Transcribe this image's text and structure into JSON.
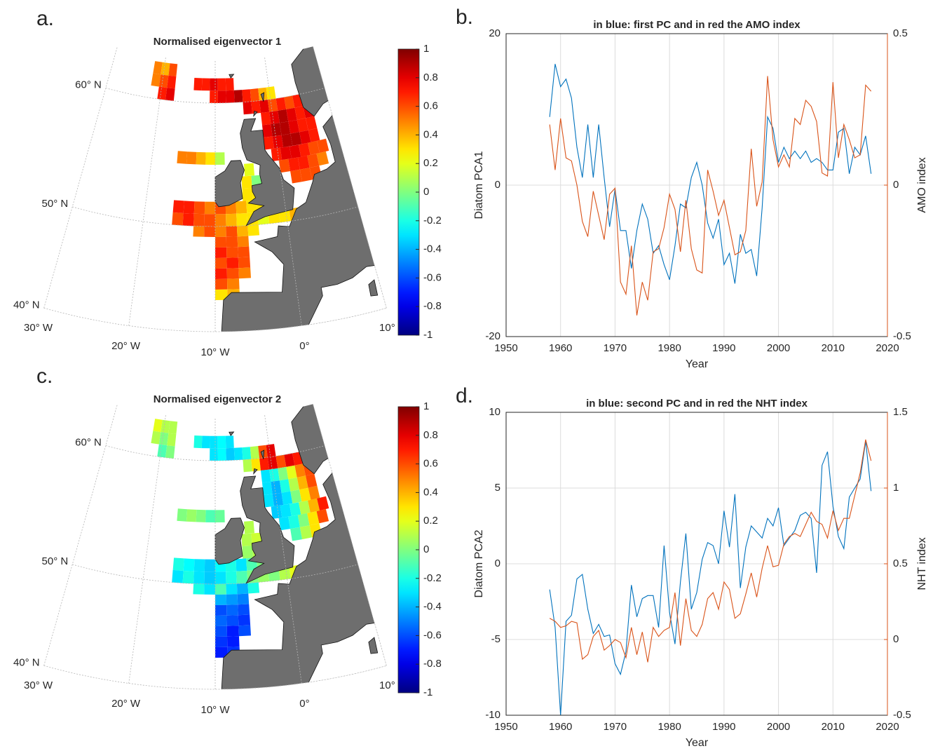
{
  "chart_data": [
    {
      "type": "map",
      "label": "a.",
      "title": "Normalised eigenvector 1",
      "clim": [
        -1,
        1
      ],
      "cticks": [
        -1,
        -0.8,
        -0.6,
        -0.4,
        -0.2,
        0,
        0.2,
        0.4,
        0.6,
        0.8,
        1
      ],
      "lat_lines": [
        {
          "value": 40,
          "label": "40° N"
        },
        {
          "value": 50,
          "label": "50° N"
        },
        {
          "value": 60,
          "label": "60° N"
        }
      ],
      "lon_lines": [
        {
          "value": -30,
          "label": "30° W"
        },
        {
          "value": -20,
          "label": "20° W"
        },
        {
          "value": -10,
          "label": "10° W"
        },
        {
          "value": 0,
          "label": "0°"
        },
        {
          "value": 10,
          "label": "10° E"
        }
      ],
      "cells": [
        {
          "lat": 62,
          "lon": -22,
          "values": [
            0.5,
            0.4,
            0.6
          ]
        },
        {
          "lat": 61,
          "lon": -22,
          "values": [
            0.5,
            0.6,
            0.7
          ]
        },
        {
          "lat": 60,
          "lon": -20.5,
          "values": [
            0.7,
            0.8
          ]
        },
        {
          "lat": 61,
          "lon": -14,
          "values": [
            0.7,
            0.7,
            0.8,
            0.7,
            0.7
          ]
        },
        {
          "lat": 60,
          "lon": -11,
          "values": [
            0.7,
            0.8,
            0.8,
            0.9,
            0.7,
            0.6,
            0.4,
            0.3
          ]
        },
        {
          "lat": 59,
          "lon": -5,
          "values": [
            0.8,
            0.7,
            0.8,
            0.6,
            0.7,
            0.6,
            0.7
          ]
        },
        {
          "lat": 58,
          "lon": -2,
          "values": [
            0.7,
            0.8,
            0.9,
            0.8,
            0.7,
            0.8
          ]
        },
        {
          "lat": 57,
          "lon": -2,
          "values": [
            0.8,
            0.9,
            0.9,
            0.8,
            0.7,
            0.7
          ]
        },
        {
          "lat": 56,
          "lon": -2,
          "values": [
            0.7,
            0.8,
            0.9,
            0.9,
            0.8,
            0.7
          ]
        },
        {
          "lat": 55,
          "lon": -1,
          "values": [
            0.7,
            0.8,
            0.8,
            0.7,
            0.6,
            0.6
          ]
        },
        {
          "lat": 54,
          "lon": 0,
          "values": [
            0.6,
            0.7,
            0.7,
            0.6,
            0.5
          ]
        },
        {
          "lat": 53,
          "lon": 1.5,
          "values": [
            0.6,
            0.6,
            0.6
          ]
        },
        {
          "lat": 55,
          "lon": -16,
          "values": [
            0.5,
            0.5,
            0.4,
            0.3,
            0.1
          ]
        },
        {
          "lat": 54,
          "lon": -5.5,
          "values": [
            0.2
          ]
        },
        {
          "lat": 53,
          "lon": -6,
          "values": [
            0.3,
            0
          ]
        },
        {
          "lat": 52,
          "lon": -6,
          "values": [
            0.3,
            0.3
          ]
        },
        {
          "lat": 51,
          "lon": -16,
          "values": [
            0.7,
            0.7,
            0.6,
            0.5,
            0.6,
            0.5,
            0.4,
            0.3,
            0.3,
            0.3
          ]
        },
        {
          "lat": 50,
          "lon": -16,
          "values": [
            0.6,
            0.7,
            0.6,
            0.6,
            0.5,
            0.4,
            0.3,
            0.3,
            0.2,
            0.3,
            0.3,
            0.4
          ]
        },
        {
          "lat": 49,
          "lon": -13,
          "values": [
            0.5,
            0.6,
            0.5,
            0.6,
            0.4,
            0.3
          ]
        },
        {
          "lat": 48,
          "lon": -10,
          "values": [
            0.6,
            0.6,
            0.5
          ]
        },
        {
          "lat": 47,
          "lon": -10,
          "values": [
            0.7,
            0.6,
            0.6
          ]
        },
        {
          "lat": 46,
          "lon": -10,
          "values": [
            0.6,
            0.7,
            0.6
          ]
        },
        {
          "lat": 45,
          "lon": -10,
          "values": [
            0.7,
            0.6,
            0.5
          ]
        },
        {
          "lat": 44,
          "lon": -10,
          "values": [
            0.6,
            0.5
          ]
        },
        {
          "lat": 43,
          "lon": -10,
          "values": [
            0.3,
            0.4
          ]
        }
      ]
    },
    {
      "type": "map",
      "label": "c.",
      "title": "Normalised eigenvector 2",
      "clim": [
        -1,
        1
      ],
      "cticks": [
        -1,
        -0.8,
        -0.6,
        -0.4,
        -0.2,
        0,
        0.2,
        0.4,
        0.6,
        0.8,
        1
      ],
      "lat_lines": [
        {
          "value": 40,
          "label": "40° N"
        },
        {
          "value": 50,
          "label": "50° N"
        },
        {
          "value": 60,
          "label": "60° N"
        }
      ],
      "lon_lines": [
        {
          "value": -30,
          "label": "30° W"
        },
        {
          "value": -20,
          "label": "20° W"
        },
        {
          "value": -10,
          "label": "10° W"
        },
        {
          "value": 0,
          "label": "0°"
        },
        {
          "value": 10,
          "label": "10° E"
        }
      ],
      "cells": [
        {
          "lat": 62,
          "lon": -22,
          "values": [
            0.2,
            0.1,
            0.1
          ]
        },
        {
          "lat": 61,
          "lon": -22,
          "values": [
            0.1,
            0,
            0.1
          ]
        },
        {
          "lat": 60,
          "lon": -20.5,
          "values": [
            -0.1,
            0
          ]
        },
        {
          "lat": 61,
          "lon": -14,
          "values": [
            -0.2,
            -0.3,
            -0.3,
            -0.25,
            -0.3
          ]
        },
        {
          "lat": 60,
          "lon": -11,
          "values": [
            -0.3,
            -0.25,
            -0.35,
            -0.3,
            -0.2,
            0.1,
            0.6,
            0.8
          ]
        },
        {
          "lat": 59,
          "lon": -5,
          "values": [
            0.1,
            0.3,
            0.7,
            0.8,
            0.6,
            0.8,
            0.7
          ]
        },
        {
          "lat": 58,
          "lon": -2,
          "values": [
            -0.3,
            -0.2,
            0,
            0.2,
            0.5,
            0.6
          ]
        },
        {
          "lat": 57,
          "lon": -2,
          "values": [
            -0.3,
            -0.4,
            -0.2,
            0.1,
            0.4,
            0.6
          ]
        },
        {
          "lat": 56,
          "lon": -2,
          "values": [
            -0.3,
            -0.4,
            -0.3,
            0,
            0.3,
            0.5
          ]
        },
        {
          "lat": 55,
          "lon": -1,
          "values": [
            -0.35,
            -0.3,
            -0.2,
            0.1,
            0.4,
            0.7
          ]
        },
        {
          "lat": 54,
          "lon": 0,
          "values": [
            -0.3,
            -0.2,
            0,
            0.3,
            0.6
          ]
        },
        {
          "lat": 53,
          "lon": 1.5,
          "values": [
            -0.1,
            0.1,
            0.3
          ]
        },
        {
          "lat": 55,
          "lon": -16,
          "values": [
            0,
            0.05,
            0,
            -0.1,
            -0.05
          ]
        },
        {
          "lat": 54,
          "lon": -5.5,
          "values": [
            0.1
          ]
        },
        {
          "lat": 53,
          "lon": -6,
          "values": [
            0.1,
            0.15
          ]
        },
        {
          "lat": 52,
          "lon": -6,
          "values": [
            0.05,
            0.1
          ]
        },
        {
          "lat": 51,
          "lon": -16,
          "values": [
            -0.2,
            -0.25,
            -0.3,
            -0.35,
            -0.25,
            -0.2,
            -0.3,
            -0.1,
            0,
            0
          ]
        },
        {
          "lat": 50,
          "lon": -16,
          "values": [
            -0.3,
            -0.2,
            -0.3,
            -0.35,
            -0.3,
            -0.2,
            -0.1,
            0,
            0.05,
            0,
            0.1,
            0.2
          ]
        },
        {
          "lat": 49,
          "lon": -13,
          "values": [
            -0.2,
            -0.3,
            -0.1,
            -0.3,
            -0.4,
            -0.2
          ]
        },
        {
          "lat": 48,
          "lon": -10,
          "values": [
            -0.4,
            -0.45,
            -0.5
          ]
        },
        {
          "lat": 47,
          "lon": -10,
          "values": [
            -0.6,
            -0.55,
            -0.6
          ]
        },
        {
          "lat": 46,
          "lon": -10,
          "values": [
            -0.55,
            -0.6,
            -0.65
          ]
        },
        {
          "lat": 45,
          "lon": -10,
          "values": [
            -0.6,
            -0.7,
            -0.6
          ]
        },
        {
          "lat": 44,
          "lon": -10,
          "values": [
            -0.65,
            -0.7
          ]
        },
        {
          "lat": 43,
          "lon": -10,
          "values": [
            -0.7,
            -0.65
          ]
        }
      ]
    },
    {
      "type": "line",
      "label": "b.",
      "title": "in blue: first PC and in red the AMO index",
      "xlabel": "Year",
      "ylabel": "Diatom PCA1",
      "y2label": "AMO index",
      "x": [
        1958,
        1959,
        1960,
        1961,
        1962,
        1963,
        1964,
        1965,
        1966,
        1967,
        1968,
        1969,
        1970,
        1971,
        1972,
        1973,
        1974,
        1975,
        1976,
        1977,
        1978,
        1979,
        1980,
        1981,
        1982,
        1983,
        1984,
        1985,
        1986,
        1987,
        1988,
        1989,
        1990,
        1991,
        1992,
        1993,
        1994,
        1995,
        1996,
        1997,
        1998,
        1999,
        2000,
        2001,
        2002,
        2003,
        2004,
        2005,
        2006,
        2007,
        2008,
        2009,
        2010,
        2011,
        2012,
        2013,
        2014,
        2015,
        2016,
        2017
      ],
      "series": [
        {
          "color": "#0072bd",
          "values": [
            9,
            16,
            13,
            14,
            11.5,
            5,
            1,
            8,
            1,
            8,
            1,
            -5.5,
            -0.5,
            -6,
            -6,
            -11,
            -6,
            -2.5,
            -4.5,
            -9,
            -8,
            -10.5,
            -12.5,
            -8,
            -2.5,
            -3,
            1,
            3,
            0,
            -5,
            -7,
            -4.5,
            -10.5,
            -9,
            -13,
            -6.5,
            -9,
            -8.5,
            -12,
            -3,
            9,
            7.5,
            3,
            5,
            3.5,
            4.5,
            3.5,
            4.5,
            3,
            3.5,
            3,
            2,
            2,
            7,
            7.5,
            1.5,
            5,
            4,
            6.5,
            1.5
          ]
        },
        {
          "color": "#d95319",
          "axis": "y2",
          "values": [
            0.2,
            0.05,
            0.22,
            0.09,
            0.08,
            0,
            -0.12,
            -0.17,
            -0.02,
            -0.1,
            -0.18,
            -0.03,
            -0.01,
            -0.32,
            -0.36,
            -0.2,
            -0.43,
            -0.32,
            -0.38,
            -0.22,
            -0.21,
            -0.14,
            -0.03,
            -0.08,
            -0.22,
            -0.05,
            -0.21,
            -0.28,
            -0.29,
            0.05,
            -0.02,
            -0.1,
            -0.05,
            -0.14,
            -0.23,
            -0.22,
            -0.15,
            0.12,
            -0.07,
            0.01,
            0.36,
            0.15,
            0.06,
            0.1,
            0.06,
            0.22,
            0.2,
            0.28,
            0.26,
            0.21,
            0.04,
            0.03,
            0.34,
            0.09,
            0.2,
            0.15,
            0.09,
            0.1,
            0.33,
            0.31
          ]
        }
      ],
      "xlim": [
        1950,
        2020
      ],
      "xticks": [
        1950,
        1960,
        1970,
        1980,
        1990,
        2000,
        2010,
        2020
      ],
      "ylim": [
        -20,
        20
      ],
      "yticks": [
        -20,
        0,
        20
      ],
      "y2lim": [
        -0.5,
        0.5
      ],
      "y2ticks": [
        -0.5,
        0,
        0.5
      ],
      "grid": true
    },
    {
      "type": "line",
      "label": "d.",
      "title": "in blue: second PC and in red the NHT index",
      "xlabel": "Year",
      "ylabel": "Diatom PCA2",
      "y2label": "NHT index",
      "x": [
        1958,
        1959,
        1960,
        1961,
        1962,
        1963,
        1964,
        1965,
        1966,
        1967,
        1968,
        1969,
        1970,
        1971,
        1972,
        1973,
        1974,
        1975,
        1976,
        1977,
        1978,
        1979,
        1980,
        1981,
        1982,
        1983,
        1984,
        1985,
        1986,
        1987,
        1988,
        1989,
        1990,
        1991,
        1992,
        1993,
        1994,
        1995,
        1996,
        1997,
        1998,
        1999,
        2000,
        2001,
        2002,
        2003,
        2004,
        2005,
        2006,
        2007,
        2008,
        2009,
        2010,
        2011,
        2012,
        2013,
        2014,
        2015,
        2016,
        2017
      ],
      "series": [
        {
          "color": "#0072bd",
          "values": [
            -1.7,
            -4.2,
            -10,
            -3.8,
            -3.4,
            -1,
            -0.7,
            -3,
            -4.6,
            -4,
            -4.8,
            -4.7,
            -6.6,
            -7.3,
            -5.8,
            -1.4,
            -3.5,
            -2.3,
            -2.1,
            -2.1,
            -4.2,
            1.2,
            -3.2,
            -5.3,
            -1.2,
            2,
            -3,
            -1.9,
            0.3,
            1.4,
            1.2,
            0,
            3.5,
            1.1,
            4.6,
            -1.6,
            1.1,
            2.5,
            2.1,
            1.7,
            3,
            2.5,
            3.7,
            1.2,
            1.7,
            2.2,
            3.2,
            3.4,
            3,
            -0.6,
            6.5,
            7.4,
            3.8,
            1.8,
            1,
            4.4,
            5,
            5.6,
            8.1,
            4.8
          ]
        },
        {
          "color": "#d95319",
          "axis": "y2",
          "values": [
            0.14,
            0.12,
            0.08,
            0.09,
            0.12,
            0.11,
            -0.13,
            -0.1,
            0.02,
            0.06,
            -0.07,
            -0.04,
            0,
            -0.02,
            -0.12,
            0.08,
            -0.1,
            0.05,
            -0.15,
            0.08,
            0.02,
            0.06,
            0.08,
            0.31,
            -0.04,
            0.27,
            0.06,
            0.02,
            0.1,
            0.27,
            0.31,
            0.2,
            0.38,
            0.33,
            0.14,
            0.17,
            0.3,
            0.44,
            0.28,
            0.47,
            0.62,
            0.48,
            0.49,
            0.63,
            0.68,
            0.7,
            0.68,
            0.76,
            0.84,
            0.78,
            0.76,
            0.67,
            0.85,
            0.72,
            0.8,
            0.8,
            0.95,
            1.1,
            1.32,
            1.18
          ]
        }
      ],
      "xlim": [
        1950,
        2020
      ],
      "xticks": [
        1950,
        1960,
        1970,
        1980,
        1990,
        2000,
        2010,
        2020
      ],
      "ylim": [
        -10,
        10
      ],
      "yticks": [
        -10,
        -5,
        0,
        5,
        10
      ],
      "y2lim": [
        -0.5,
        1.5
      ],
      "y2ticks": [
        -0.5,
        0,
        0.5,
        1,
        1.5
      ],
      "grid": true
    }
  ]
}
